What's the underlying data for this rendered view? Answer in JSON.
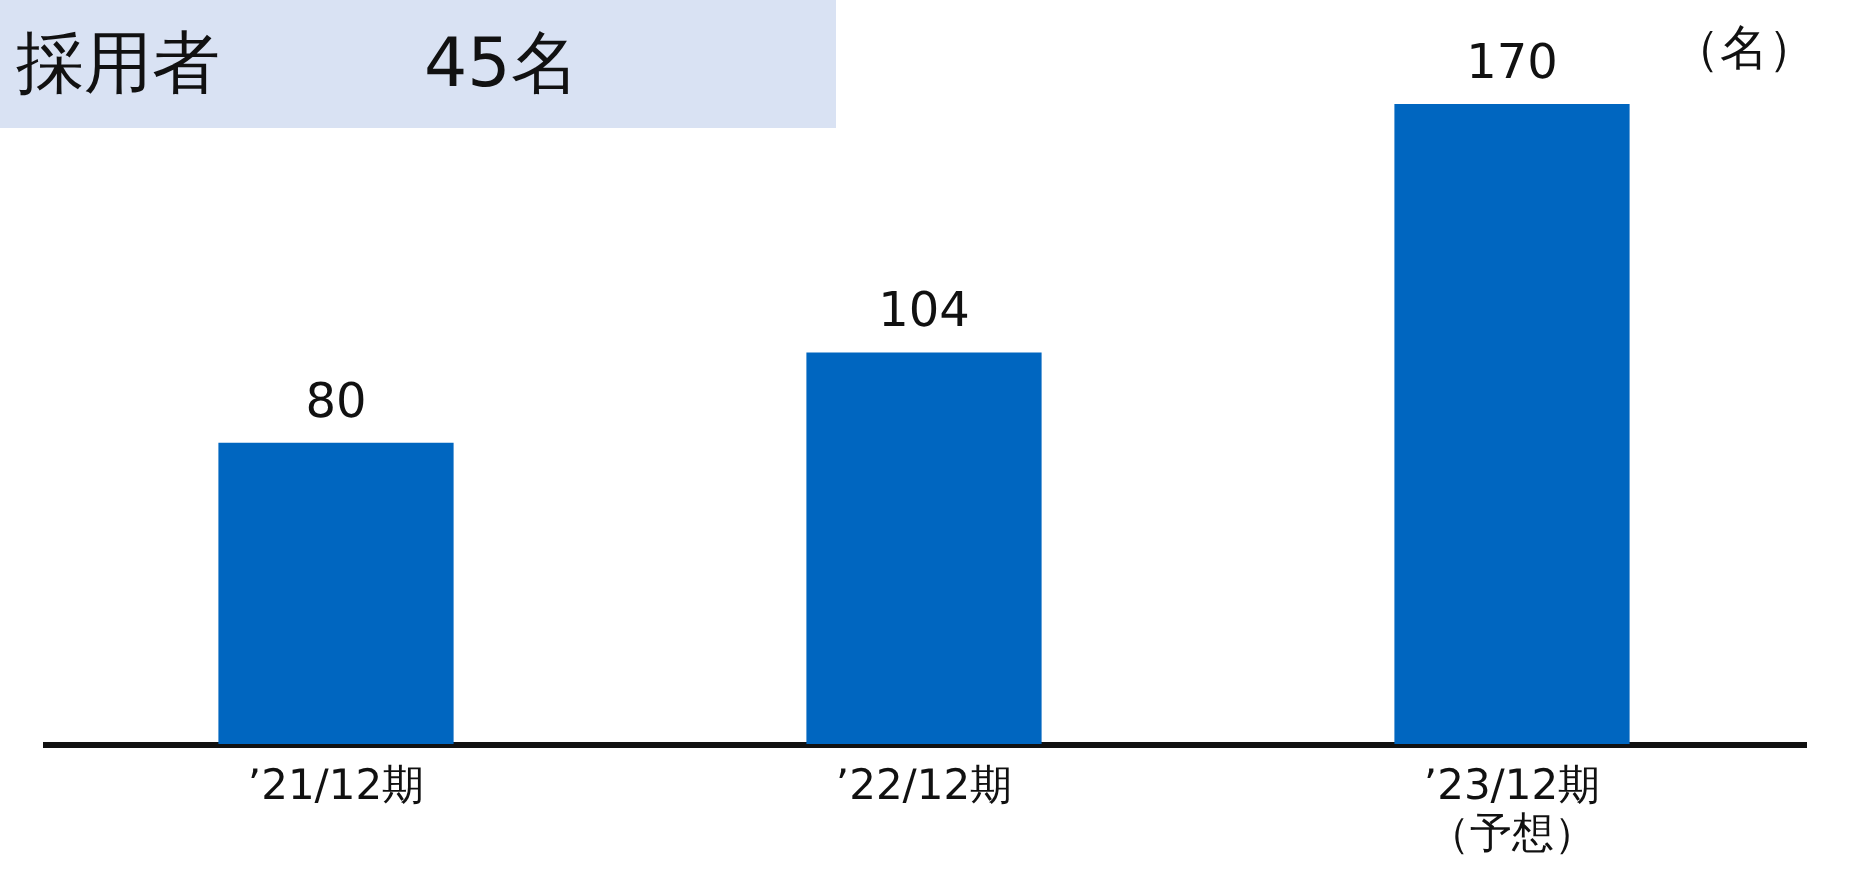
{
  "chart_data": {
    "type": "bar",
    "ylabel": "（名）",
    "annotations": [
      "採用者　　　45名"
    ],
    "categories": [
      "’21/12期",
      "’22/12期",
      "’23/12期（予想）"
    ],
    "values": [
      80,
      104,
      170
    ],
    "color": "#0066c0",
    "data_labels": true
  }
}
